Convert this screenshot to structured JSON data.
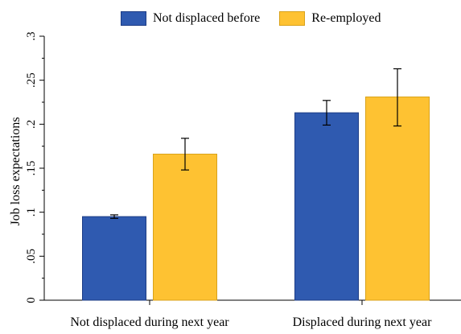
{
  "chart_data": {
    "type": "bar",
    "title": "",
    "xlabel": "",
    "ylabel": "Job loss expectations",
    "ylim": [
      0,
      0.3
    ],
    "yticks": [
      0,
      0.05,
      0.1,
      0.15,
      0.2,
      0.25,
      0.3
    ],
    "ytick_labels": [
      "0",
      ".05",
      ".1",
      ".15",
      ".2",
      ".25",
      ".3"
    ],
    "categories": [
      "Not displaced during next year",
      "Displaced during next year"
    ],
    "series": [
      {
        "name": "Not displaced before",
        "color": "#2f5ab0",
        "values": [
          0.095,
          0.213
        ],
        "ci_low": [
          0.093,
          0.199
        ],
        "ci_high": [
          0.097,
          0.227
        ]
      },
      {
        "name": "Re-employed",
        "color": "#fec232",
        "values": [
          0.166,
          0.231
        ],
        "ci_low": [
          0.148,
          0.198
        ],
        "ci_high": [
          0.184,
          0.263
        ]
      }
    ],
    "legend_position": "top",
    "grid": false
  }
}
